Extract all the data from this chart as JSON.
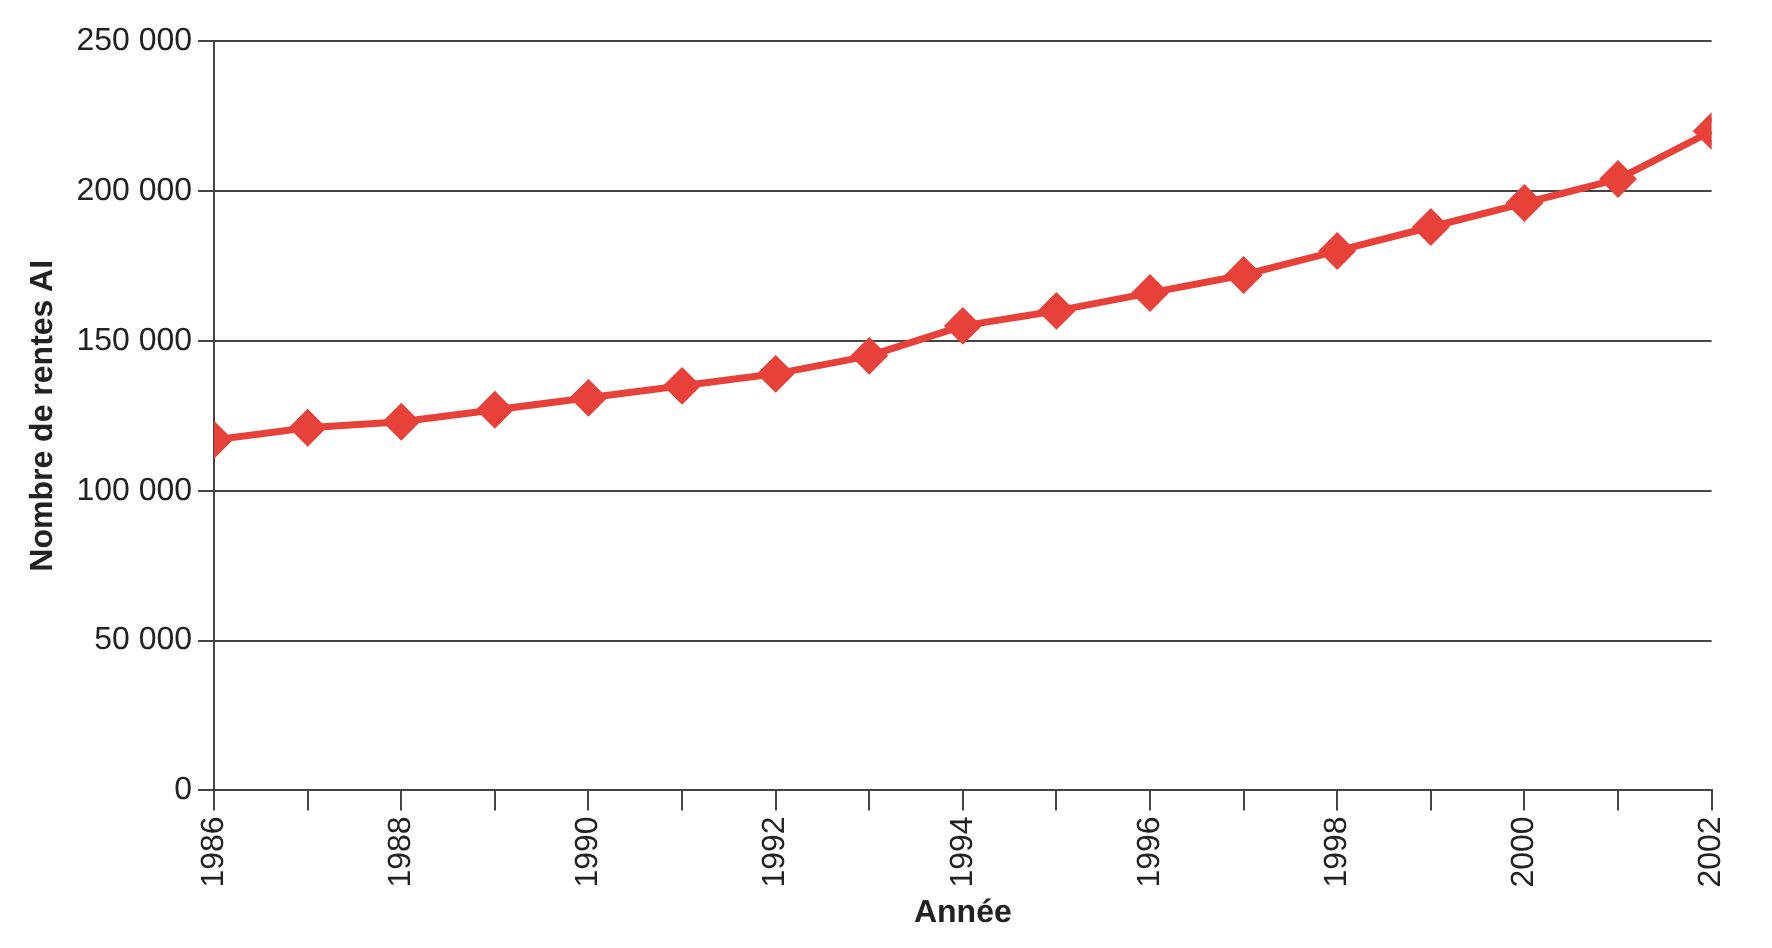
{
  "chart_data": {
    "type": "line",
    "xlabel": "Année",
    "ylabel": "Nombre de rentes AI",
    "x": [
      1986,
      1987,
      1988,
      1989,
      1990,
      1991,
      1992,
      1993,
      1994,
      1995,
      1996,
      1997,
      1998,
      1999,
      2000,
      2001,
      2002
    ],
    "series": [
      {
        "color": "#e8413a",
        "values": [
          117000,
          121000,
          123000,
          127000,
          131000,
          135000,
          139000,
          145000,
          155000,
          160000,
          166000,
          172000,
          180000,
          188000,
          196000,
          204000,
          220000
        ]
      }
    ],
    "xlim": [
      1986,
      2002
    ],
    "xticks": [
      1986,
      {
        "value": 1987,
        "label": null
      },
      1988,
      {
        "value": 1989,
        "label": null
      },
      1990,
      {
        "value": 1991,
        "label": null
      },
      1992,
      {
        "value": 1993,
        "label": null
      },
      1994,
      {
        "value": 1995,
        "label": null
      },
      1996,
      {
        "value": 1997,
        "label": null
      },
      1998,
      {
        "value": 1999,
        "label": null
      },
      2000,
      {
        "value": 2001,
        "label": null
      },
      2002
    ],
    "ylim": [
      0,
      250000
    ],
    "yticks": [
      0,
      {
        "value": 50000,
        "label": "50 000"
      },
      {
        "value": 100000,
        "label": "100 000"
      },
      {
        "value": 150000,
        "label": "150 000"
      },
      {
        "value": 200000,
        "label": "200 000"
      },
      {
        "value": 250000,
        "label": "250 000"
      }
    ],
    "grid": "y",
    "legend": false,
    "marker": "diamond",
    "line_style": "solid"
  }
}
